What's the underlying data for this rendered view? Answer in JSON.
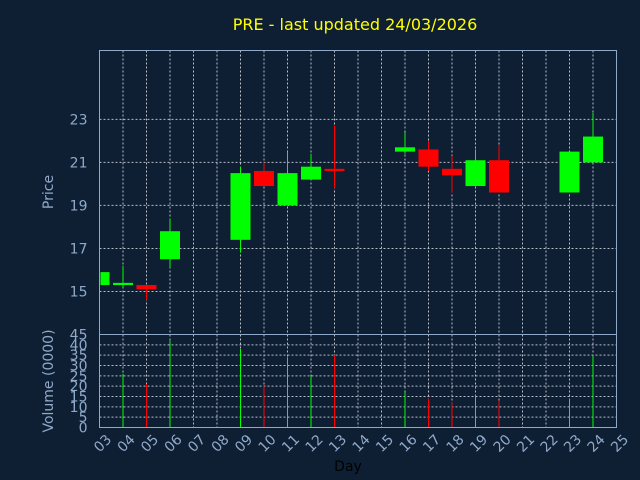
{
  "chart_data": {
    "type": "candlestick",
    "title": "PRE - last updated 24/03/2026",
    "xlabel": "Day",
    "colors": {
      "background": "#0f1f33",
      "plot_border": "#8fa9c9",
      "grid": "#b4bcc6",
      "up": "#00ff00",
      "down": "#ff0000",
      "title": "#ffff00",
      "axis_text": "#8fa9c9",
      "xlabel_text": "#000000"
    },
    "x_ticks": [
      "03",
      "04",
      "05",
      "06",
      "07",
      "08",
      "09",
      "10",
      "11",
      "12",
      "13",
      "14",
      "15",
      "16",
      "17",
      "18",
      "19",
      "20",
      "21",
      "22",
      "23",
      "24",
      "25"
    ],
    "x_range": [
      3,
      25
    ],
    "price_panel": {
      "ylabel": "Price",
      "ylim": [
        13.0,
        26.2
      ],
      "yticks": [
        15,
        17,
        19,
        21,
        23
      ],
      "grid": true,
      "candles": [
        {
          "day": 3,
          "open": 15.3,
          "close": 15.9,
          "high": 15.9,
          "low": 15.3
        },
        {
          "day": 4,
          "open": 15.3,
          "close": 15.4,
          "high": 16.2,
          "low": 15.2
        },
        {
          "day": 5,
          "open": 15.3,
          "close": 15.1,
          "high": 15.3,
          "low": 14.6
        },
        {
          "day": 6,
          "open": 16.5,
          "close": 17.8,
          "high": 18.4,
          "low": 16.1
        },
        {
          "day": 9,
          "open": 17.4,
          "close": 20.5,
          "high": 20.8,
          "low": 16.8
        },
        {
          "day": 10,
          "open": 20.6,
          "close": 19.9,
          "high": 21.0,
          "low": 19.9
        },
        {
          "day": 11,
          "open": 19.0,
          "close": 20.5,
          "high": 21.5,
          "low": 19.0
        },
        {
          "day": 12,
          "open": 20.2,
          "close": 20.8,
          "high": 21.4,
          "low": 20.2
        },
        {
          "day": 13,
          "open": 20.7,
          "close": 20.6,
          "high": 22.7,
          "low": 19.8
        },
        {
          "day": 16,
          "open": 21.5,
          "close": 21.7,
          "high": 22.4,
          "low": 21.4
        },
        {
          "day": 17,
          "open": 21.6,
          "close": 20.8,
          "high": 22.0,
          "low": 20.6
        },
        {
          "day": 18,
          "open": 20.7,
          "close": 20.4,
          "high": 21.3,
          "low": 19.6
        },
        {
          "day": 19,
          "open": 19.9,
          "close": 21.1,
          "high": 21.6,
          "low": 19.9
        },
        {
          "day": 20,
          "open": 21.1,
          "close": 19.6,
          "high": 21.8,
          "low": 19.6
        },
        {
          "day": 23,
          "open": 19.6,
          "close": 21.5,
          "high": 21.5,
          "low": 19.6
        },
        {
          "day": 24,
          "open": 21.0,
          "close": 22.2,
          "high": 23.3,
          "low": 21.0
        }
      ]
    },
    "volume_panel": {
      "ylabel": "Volume (0000)",
      "ylim": [
        0,
        45
      ],
      "yticks": [
        0,
        5,
        10,
        15,
        20,
        25,
        30,
        35,
        40,
        45
      ],
      "grid": true,
      "bars": [
        {
          "day": 4,
          "value": 26,
          "direction": "up"
        },
        {
          "day": 5,
          "value": 21,
          "direction": "down"
        },
        {
          "day": 6,
          "value": 42,
          "direction": "up"
        },
        {
          "day": 9,
          "value": 38,
          "direction": "up"
        },
        {
          "day": 10,
          "value": 20,
          "direction": "down"
        },
        {
          "day": 11,
          "value": 34,
          "direction": "up"
        },
        {
          "day": 12,
          "value": 25,
          "direction": "up"
        },
        {
          "day": 13,
          "value": 35,
          "direction": "down"
        },
        {
          "day": 16,
          "value": 17,
          "direction": "up"
        },
        {
          "day": 17,
          "value": 14,
          "direction": "down"
        },
        {
          "day": 18,
          "value": 12,
          "direction": "down"
        },
        {
          "day": 19,
          "value": 16,
          "direction": "up"
        },
        {
          "day": 20,
          "value": 13,
          "direction": "down"
        },
        {
          "day": 23,
          "value": 14,
          "direction": "up"
        },
        {
          "day": 24,
          "value": 35,
          "direction": "up"
        }
      ]
    }
  }
}
